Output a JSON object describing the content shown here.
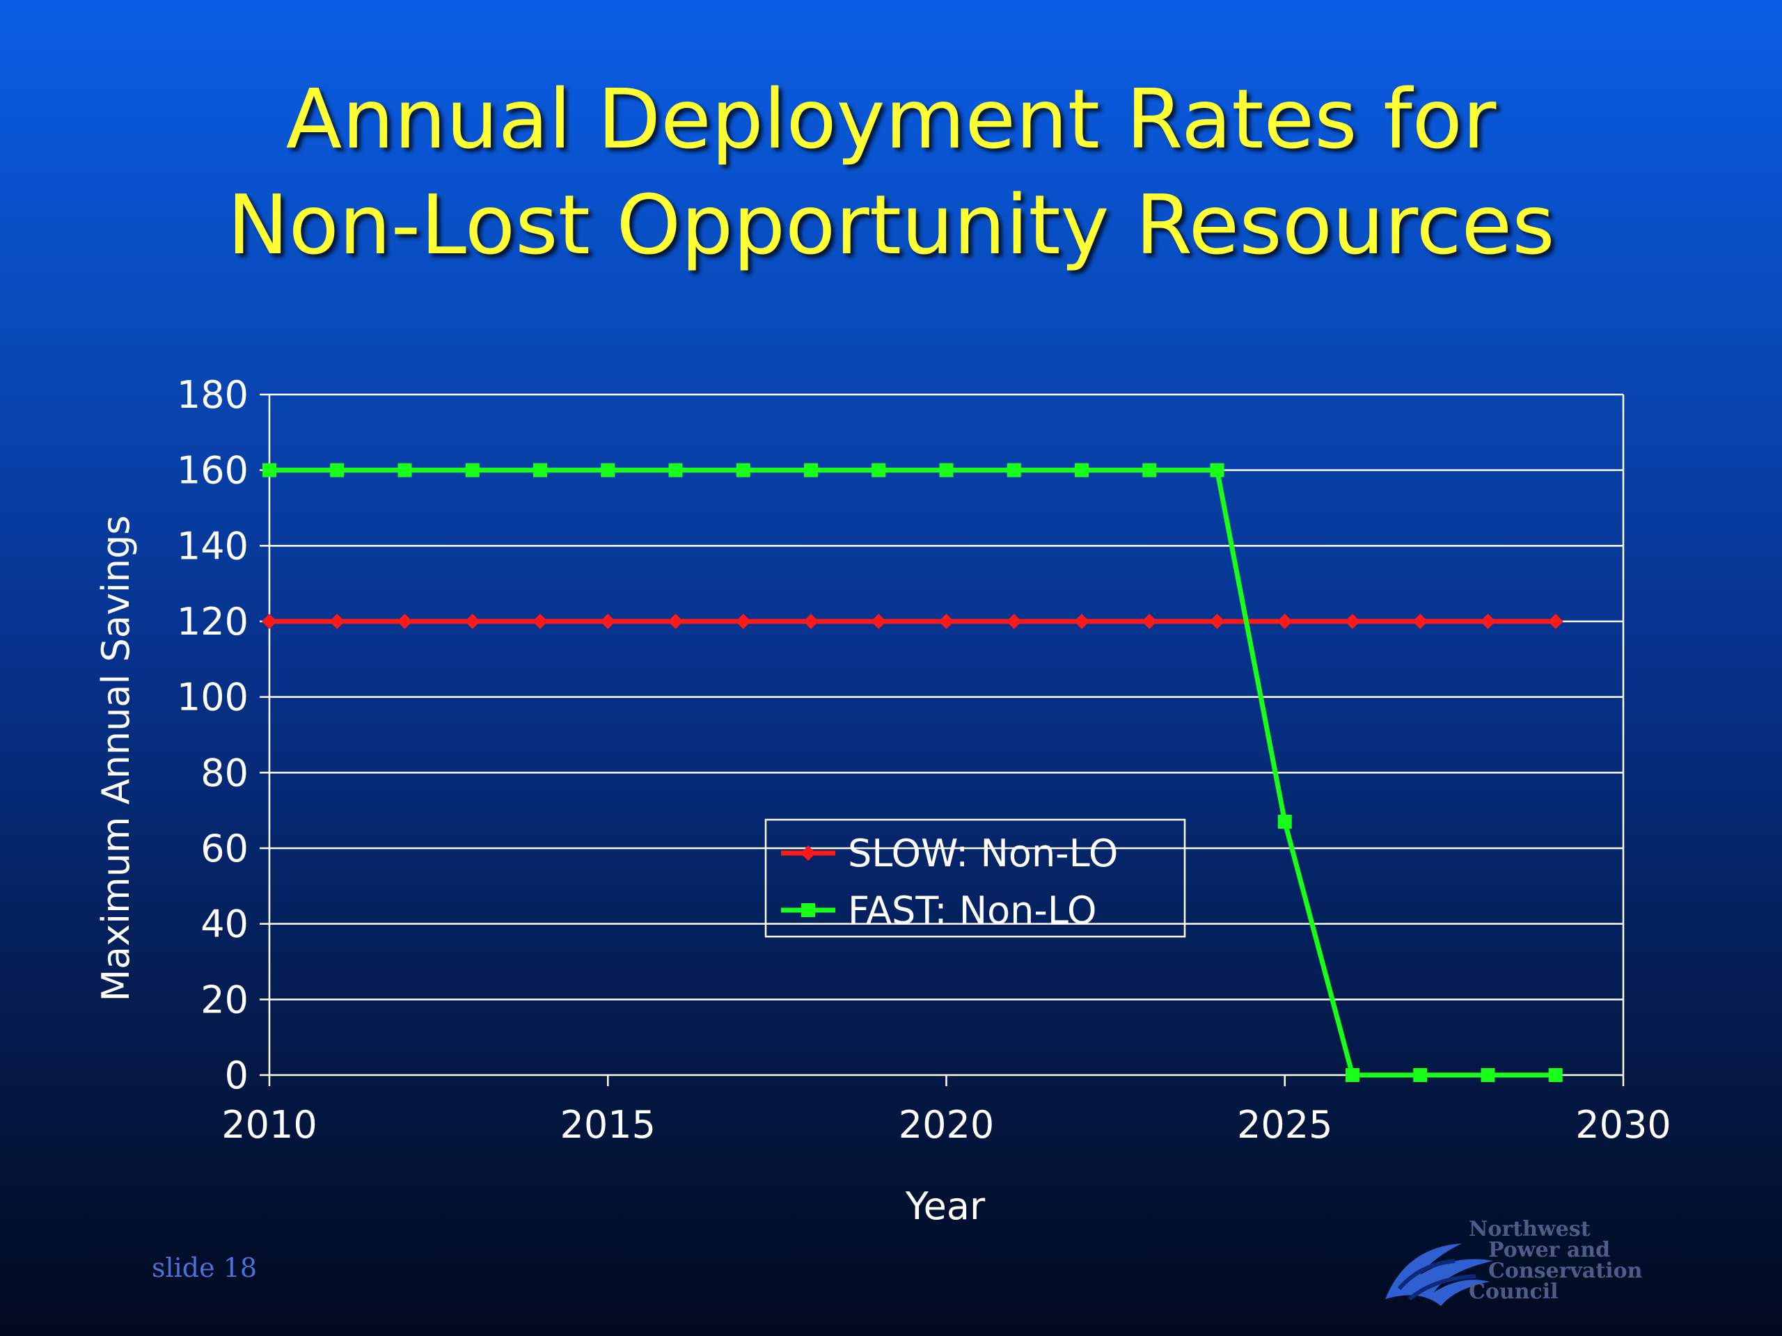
{
  "slide": {
    "title_line1": "Annual Deployment Rates for",
    "title_line2": "Non-Lost Opportunity Resources",
    "slide_number": "slide 18",
    "logo": {
      "line1": "Northwest",
      "line2": "Power and",
      "line3": "Conservation",
      "line4": "Council",
      "icon": "wave-logo-icon"
    }
  },
  "chart_data": {
    "type": "line",
    "xlabel": "Year",
    "ylabel": "Maximum Annual Savings",
    "xlim": [
      2010,
      2030
    ],
    "ylim": [
      0,
      180
    ],
    "x_ticks": [
      2010,
      2015,
      2020,
      2025,
      2030
    ],
    "y_ticks": [
      0,
      20,
      40,
      60,
      80,
      100,
      120,
      140,
      160,
      180
    ],
    "grid": true,
    "legend_placement": "center",
    "series": [
      {
        "name": "SLOW: Non-LO",
        "color": "#ff1a1a",
        "marker": "diamond",
        "x": [
          2010,
          2011,
          2012,
          2013,
          2014,
          2015,
          2016,
          2017,
          2018,
          2019,
          2020,
          2021,
          2022,
          2023,
          2024,
          2025,
          2026,
          2027,
          2028,
          2029
        ],
        "values": [
          120,
          120,
          120,
          120,
          120,
          120,
          120,
          120,
          120,
          120,
          120,
          120,
          120,
          120,
          120,
          120,
          120,
          120,
          120,
          120
        ]
      },
      {
        "name": "FAST: Non-LO",
        "color": "#1aff1a",
        "marker": "square",
        "x": [
          2010,
          2011,
          2012,
          2013,
          2014,
          2015,
          2016,
          2017,
          2018,
          2019,
          2020,
          2021,
          2022,
          2023,
          2024,
          2025,
          2026,
          2027,
          2028,
          2029
        ],
        "values": [
          160,
          160,
          160,
          160,
          160,
          160,
          160,
          160,
          160,
          160,
          160,
          160,
          160,
          160,
          160,
          67,
          0,
          0,
          0,
          0
        ]
      }
    ]
  }
}
